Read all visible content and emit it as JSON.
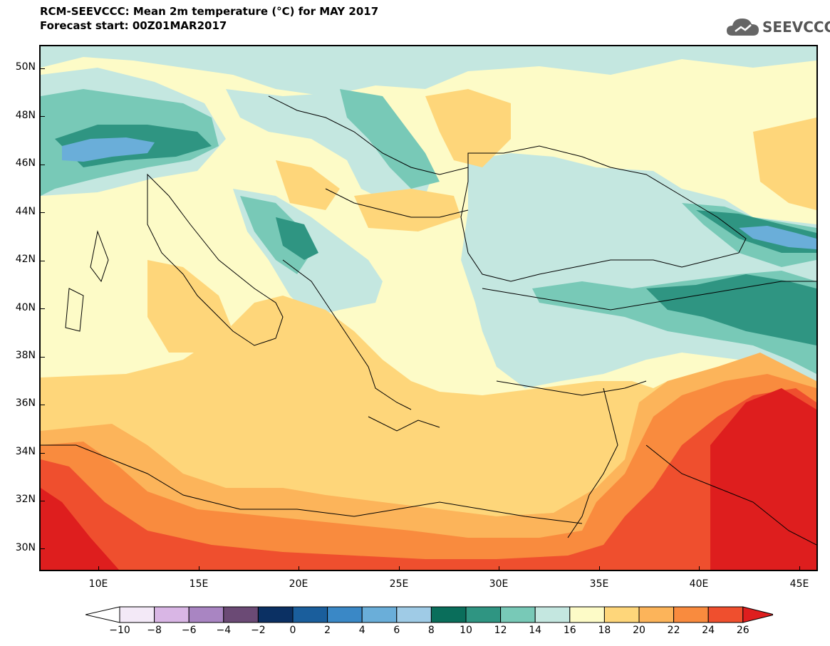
{
  "title": {
    "line1": "RCM-SEEVCCC: Mean 2m temperature (°C) for MAY 2017",
    "line2": "Forecast start: 00Z01MAR2017"
  },
  "logo": {
    "icon": "cloud-icon",
    "text": "SEEVCCC"
  },
  "map": {
    "lat_labels": [
      "50N",
      "48N",
      "46N",
      "44N",
      "42N",
      "40N",
      "38N",
      "36N",
      "34N",
      "32N",
      "30N"
    ],
    "lon_labels": [
      "10E",
      "15E",
      "20E",
      "25E",
      "30E",
      "35E",
      "40E",
      "45E"
    ]
  },
  "colorbar": {
    "labels": [
      "−10",
      "−8",
      "−6",
      "−4",
      "−2",
      "0",
      "2",
      "4",
      "6",
      "8",
      "10",
      "12",
      "14",
      "16",
      "18",
      "20",
      "22",
      "24",
      "26"
    ],
    "colors": [
      "#f3e9f7",
      "#d9b6e5",
      "#a985c2",
      "#6b4a75",
      "#0b3063",
      "#1a5e9c",
      "#3a88c6",
      "#6aaed9",
      "#9fcbe6",
      "#0a6e5b",
      "#2f9582",
      "#78c9b7",
      "#c4e7e0",
      "#fdfbc7",
      "#fed67a",
      "#fcb45a",
      "#f98b3e",
      "#ef4f2e",
      "#de1e1e"
    ]
  }
}
